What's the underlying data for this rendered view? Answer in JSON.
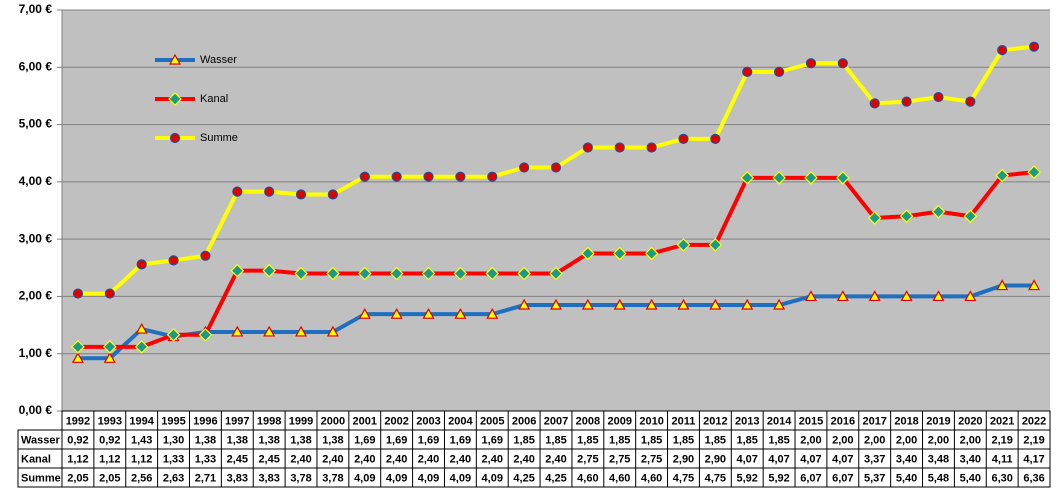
{
  "chart_data": {
    "type": "line",
    "categories": [
      "1992",
      "1993",
      "1994",
      "1995",
      "1996",
      "1997",
      "1998",
      "1999",
      "2000",
      "2001",
      "2002",
      "2003",
      "2004",
      "2005",
      "2006",
      "2007",
      "2008",
      "2009",
      "2010",
      "2011",
      "2012",
      "2013",
      "2014",
      "2015",
      "2016",
      "2017",
      "2018",
      "2019",
      "2020",
      "2021",
      "2022"
    ],
    "series": [
      {
        "name": "Wasser",
        "color": "#1f6fc1",
        "marker": "triangle",
        "marker_color": "#ffff00",
        "marker_edge": "#e00000",
        "values": [
          0.92,
          0.92,
          1.43,
          1.3,
          1.38,
          1.38,
          1.38,
          1.38,
          1.38,
          1.69,
          1.69,
          1.69,
          1.69,
          1.69,
          1.85,
          1.85,
          1.85,
          1.85,
          1.85,
          1.85,
          1.85,
          1.85,
          1.85,
          2.0,
          2.0,
          2.0,
          2.0,
          2.0,
          2.0,
          2.19,
          2.19
        ],
        "value_labels": [
          "0,92",
          "0,92",
          "1,43",
          "1,30",
          "1,38",
          "1,38",
          "1,38",
          "1,38",
          "1,38",
          "1,69",
          "1,69",
          "1,69",
          "1,69",
          "1,69",
          "1,85",
          "1,85",
          "1,85",
          "1,85",
          "1,85",
          "1,85",
          "1,85",
          "1,85",
          "1,85",
          "2,00",
          "2,00",
          "2,00",
          "2,00",
          "2,00",
          "2,00",
          "2,19",
          "2,19"
        ]
      },
      {
        "name": "Kanal",
        "color": "#ff0000",
        "marker": "diamond",
        "marker_color": "#1a9a8a",
        "marker_edge": "#ffff00",
        "values": [
          1.12,
          1.12,
          1.12,
          1.33,
          1.33,
          2.45,
          2.45,
          2.4,
          2.4,
          2.4,
          2.4,
          2.4,
          2.4,
          2.4,
          2.4,
          2.4,
          2.75,
          2.75,
          2.75,
          2.9,
          2.9,
          4.07,
          4.07,
          4.07,
          4.07,
          3.37,
          3.4,
          3.48,
          3.4,
          4.11,
          4.17
        ],
        "value_labels": [
          "1,12",
          "1,12",
          "1,12",
          "1,33",
          "1,33",
          "2,45",
          "2,45",
          "2,40",
          "2,40",
          "2,40",
          "2,40",
          "2,40",
          "2,40",
          "2,40",
          "2,40",
          "2,40",
          "2,75",
          "2,75",
          "2,75",
          "2,90",
          "2,90",
          "4,07",
          "4,07",
          "4,07",
          "4,07",
          "3,37",
          "3,40",
          "3,48",
          "3,40",
          "4,11",
          "4,17"
        ]
      },
      {
        "name": "Summe",
        "color": "#ffff00",
        "marker": "circle",
        "marker_color": "#e00000",
        "marker_edge": "#1f4fa0",
        "values": [
          2.05,
          2.05,
          2.56,
          2.63,
          2.71,
          3.83,
          3.83,
          3.78,
          3.78,
          4.09,
          4.09,
          4.09,
          4.09,
          4.09,
          4.25,
          4.25,
          4.6,
          4.6,
          4.6,
          4.75,
          4.75,
          5.92,
          5.92,
          6.07,
          6.07,
          5.37,
          5.4,
          5.48,
          5.4,
          6.3,
          6.36
        ],
        "value_labels": [
          "2,05",
          "2,05",
          "2,56",
          "2,63",
          "2,71",
          "3,83",
          "3,83",
          "3,78",
          "3,78",
          "4,09",
          "4,09",
          "4,09",
          "4,09",
          "4,09",
          "4,25",
          "4,25",
          "4,60",
          "4,60",
          "4,60",
          "4,75",
          "4,75",
          "5,92",
          "5,92",
          "6,07",
          "6,07",
          "5,37",
          "5,40",
          "5,48",
          "5,40",
          "6,30",
          "6,36"
        ]
      }
    ],
    "ylim": [
      0,
      7
    ],
    "yticks": [
      {
        "value": 0,
        "label": "0,00 €"
      },
      {
        "value": 1,
        "label": "1,00 €"
      },
      {
        "value": 2,
        "label": "2,00 €"
      },
      {
        "value": 3,
        "label": "3,00 €"
      },
      {
        "value": 4,
        "label": "4,00 €"
      },
      {
        "value": 5,
        "label": "5,00 €"
      },
      {
        "value": 6,
        "label": "6,00 €"
      },
      {
        "value": 7,
        "label": "7,00 €"
      }
    ],
    "grid": true,
    "legend": "upper left",
    "plot_background": "#c0c0c0"
  }
}
